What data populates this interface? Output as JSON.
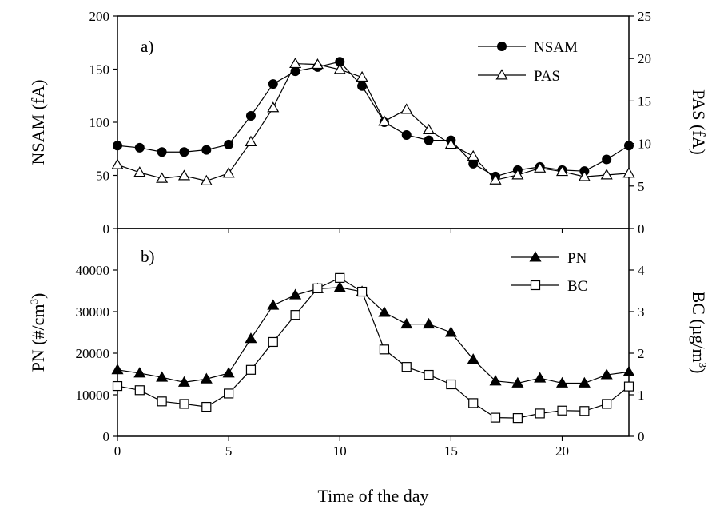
{
  "chart_data": [
    {
      "type": "line",
      "panel_label": "a)",
      "x": [
        0,
        1,
        2,
        3,
        4,
        5,
        6,
        7,
        8,
        9,
        10,
        11,
        12,
        13,
        14,
        15,
        16,
        17,
        18,
        19,
        20,
        21,
        22,
        23
      ],
      "xlim": [
        0,
        23
      ],
      "x_ticks": [
        "0",
        "5",
        "10",
        "15",
        "20"
      ],
      "x_tick_values": [
        0,
        5,
        10,
        15,
        20
      ],
      "ylabel": "NSAM (fA)",
      "ylim": [
        0,
        200
      ],
      "y_ticks": [
        "0",
        "50",
        "100",
        "150",
        "200"
      ],
      "y_tick_values": [
        0,
        50,
        100,
        150,
        200
      ],
      "y2label": "PAS (fA)",
      "y2lim": [
        0,
        25
      ],
      "y2_ticks": [
        "0",
        "5",
        "10",
        "15",
        "20",
        "25"
      ],
      "y2_tick_values": [
        0,
        5,
        10,
        15,
        20,
        25
      ],
      "legend_position": "top-right",
      "series": [
        {
          "name": "NSAM",
          "axis": "left",
          "marker": "filled-circle",
          "values": [
            78,
            76,
            72,
            72,
            74,
            79,
            106,
            136,
            148,
            152,
            157,
            134,
            100,
            88,
            83,
            83,
            61,
            49,
            55,
            58,
            55,
            54,
            65,
            78
          ]
        },
        {
          "name": "PAS",
          "axis": "right",
          "marker": "open-triangle",
          "values": [
            7.5,
            6.6,
            5.9,
            6.2,
            5.6,
            6.5,
            10.2,
            14.2,
            19.4,
            19.3,
            18.7,
            17.8,
            12.6,
            14.0,
            11.6,
            9.9,
            8.5,
            5.7,
            6.3,
            7.1,
            6.7,
            6.1,
            6.3,
            6.5
          ]
        }
      ]
    },
    {
      "type": "line",
      "panel_label": "b)",
      "x": [
        0,
        1,
        2,
        3,
        4,
        5,
        6,
        7,
        8,
        9,
        10,
        11,
        12,
        13,
        14,
        15,
        16,
        17,
        18,
        19,
        20,
        21,
        22,
        23
      ],
      "xlim": [
        0,
        23
      ],
      "xlabel": "Time of the day",
      "x_ticks": [
        "0",
        "5",
        "10",
        "15",
        "20"
      ],
      "x_tick_values": [
        0,
        5,
        10,
        15,
        20
      ],
      "ylabel": "PN (#/cm",
      "ylabel_sup": "3",
      "ylabel_tail": ")",
      "ylim": [
        0,
        50000
      ],
      "y_ticks": [
        "0",
        "10000",
        "20000",
        "30000",
        "40000"
      ],
      "y_tick_values": [
        0,
        10000,
        20000,
        30000,
        40000
      ],
      "y2label": "BC (µg/m",
      "y2label_sup": "3",
      "y2label_tail": ")",
      "y2lim": [
        0,
        5
      ],
      "y2_ticks": [
        "0",
        "1",
        "2",
        "3",
        "4"
      ],
      "y2_tick_values": [
        0,
        1,
        2,
        3,
        4
      ],
      "legend_position": "top-right",
      "series": [
        {
          "name": "PN",
          "axis": "left",
          "marker": "filled-triangle",
          "values": [
            16000,
            15200,
            14200,
            13000,
            13800,
            15200,
            23500,
            31500,
            34000,
            35500,
            35800,
            34800,
            29800,
            27000,
            27000,
            25000,
            18500,
            13300,
            12800,
            14000,
            12800,
            12800,
            14800,
            15500
          ]
        },
        {
          "name": "BC",
          "axis": "right",
          "marker": "open-square",
          "values": [
            1.21,
            1.11,
            0.84,
            0.78,
            0.71,
            1.03,
            1.6,
            2.27,
            2.92,
            3.56,
            3.81,
            3.48,
            2.09,
            1.67,
            1.48,
            1.25,
            0.8,
            0.45,
            0.44,
            0.55,
            0.62,
            0.61,
            0.78,
            1.2
          ]
        }
      ]
    }
  ]
}
